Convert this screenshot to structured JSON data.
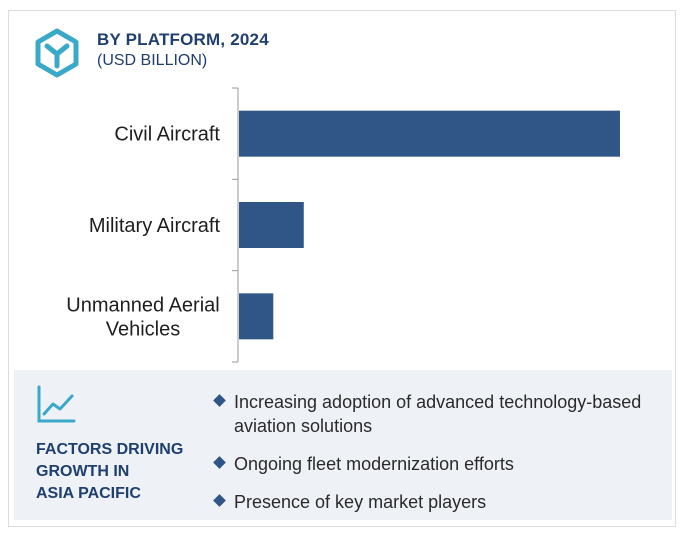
{
  "header": {
    "title": "BY PLATFORM, 2024",
    "subtitle": "(USD BILLION)"
  },
  "colors": {
    "bar": "#2f5687",
    "heading": "#1f3f6e",
    "logo": "#3aa9c9",
    "panel_bg": "#eef1f5"
  },
  "icons": {
    "logo": "hexagon-y-logo",
    "trend": "trend-line-icon",
    "bullet": "diamond-bullet"
  },
  "chart_data": {
    "type": "bar",
    "orientation": "horizontal",
    "categories": [
      "Civil Aircraft",
      "Military Aircraft",
      "Unmanned Aerial Vehicles"
    ],
    "category_lines": [
      [
        "Civil Aircraft"
      ],
      [
        "Military Aircraft"
      ],
      [
        "Unmanned Aerial",
        "Vehicles"
      ]
    ],
    "values": [
      100,
      17,
      9
    ],
    "value_note": "relative bar lengths; no axis scale printed",
    "title": "BY PLATFORM, 2024",
    "ylabel": "",
    "xlabel": "",
    "grid": false,
    "legend": "none"
  },
  "factors": {
    "heading": "FACTORS DRIVING\nGROWTH IN\nASIA PACIFIC",
    "items": [
      "Increasing adoption of advanced technology-based aviation solutions",
      "Ongoing fleet modernization efforts",
      "Presence of key market players"
    ]
  }
}
